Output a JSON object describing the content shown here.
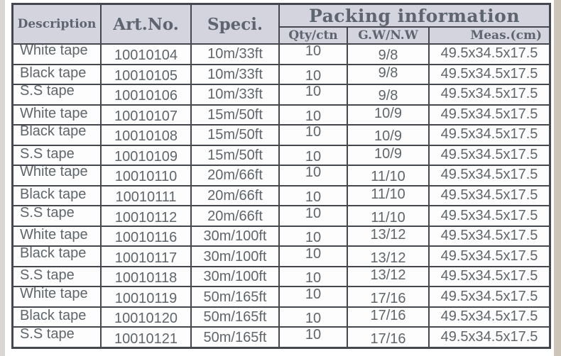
{
  "page": {
    "background": "#ffffff",
    "left_edge_color": "#d8d7d4",
    "right_edge_color": "#cdc5b8"
  },
  "table": {
    "title": "Packing information",
    "columns": {
      "description": "Description",
      "art_no": "Art.No.",
      "speci": "Speci.",
      "qty_ctn": "Qty/ctn",
      "gw_nw": "G.W/N.W",
      "meas_cm": "Meas.(cm)"
    },
    "colors": {
      "header_background": "#d3d4de",
      "header_text": "#5e6570",
      "border": "#44474d",
      "body_text": "#5f666b",
      "body_background": "#fdfdfd"
    },
    "rows": [
      {
        "description": "White tape",
        "art_no": "10010104",
        "speci": "10m/33ft",
        "qty_ctn": "10",
        "gw_nw": "9/8",
        "meas_cm": "49.5x34.5x17.5"
      },
      {
        "description": "Black tape",
        "art_no": "10010105",
        "speci": "10m/33ft",
        "qty_ctn": "10",
        "gw_nw": "9/8",
        "meas_cm": "49.5x34.5x17.5"
      },
      {
        "description": "S.S tape",
        "art_no": "10010106",
        "speci": "10m/33ft",
        "qty_ctn": "10",
        "gw_nw": "9/8",
        "meas_cm": "49.5x34.5x17.5"
      },
      {
        "description": "White tape",
        "art_no": "10010107",
        "speci": "15m/50ft",
        "qty_ctn": "10",
        "gw_nw": "10/9",
        "meas_cm": "49.5x34.5x17.5"
      },
      {
        "description": "Black tape",
        "art_no": "10010108",
        "speci": "15m/50ft",
        "qty_ctn": "10",
        "gw_nw": "10/9",
        "meas_cm": "49.5x34.5x17.5"
      },
      {
        "description": "S.S tape",
        "art_no": "10010109",
        "speci": "15m/50ft",
        "qty_ctn": "10",
        "gw_nw": "10/9",
        "meas_cm": "49.5x34.5x17.5"
      },
      {
        "description": "White tape",
        "art_no": "10010110",
        "speci": "20m/66ft",
        "qty_ctn": "10",
        "gw_nw": "11/10",
        "meas_cm": "49.5x34.5x17.5"
      },
      {
        "description": "Black tape",
        "art_no": "10010111",
        "speci": "20m/66ft",
        "qty_ctn": "10",
        "gw_nw": "11/10",
        "meas_cm": "49.5x34.5x17.5"
      },
      {
        "description": "S.S tape",
        "art_no": "10010112",
        "speci": "20m/66ft",
        "qty_ctn": "10",
        "gw_nw": "11/10",
        "meas_cm": "49.5x34.5x17.5"
      },
      {
        "description": "White tape",
        "art_no": "10010116",
        "speci": "30m/100ft",
        "qty_ctn": "10",
        "gw_nw": "13/12",
        "meas_cm": "49.5x34.5x17.5"
      },
      {
        "description": "Black tape",
        "art_no": "10010117",
        "speci": "30m/100ft",
        "qty_ctn": "10",
        "gw_nw": "13/12",
        "meas_cm": "49.5x34.5x17.5"
      },
      {
        "description": "S.S tape",
        "art_no": "10010118",
        "speci": "30m/100ft",
        "qty_ctn": "10",
        "gw_nw": "13/12",
        "meas_cm": "49.5x34.5x17.5"
      },
      {
        "description": "White tape",
        "art_no": "10010119",
        "speci": "50m/165ft",
        "qty_ctn": "10",
        "gw_nw": "17/16",
        "meas_cm": "49.5x34.5x17.5"
      },
      {
        "description": "Black tape",
        "art_no": "10010120",
        "speci": "50m/165ft",
        "qty_ctn": "10",
        "gw_nw": "17/16",
        "meas_cm": "49.5x34.5x17.5"
      },
      {
        "description": "S.S tape",
        "art_no": "10010121",
        "speci": "50m/165ft",
        "qty_ctn": "10",
        "gw_nw": "17/16",
        "meas_cm": "49.5x34.5x17.5"
      }
    ]
  }
}
